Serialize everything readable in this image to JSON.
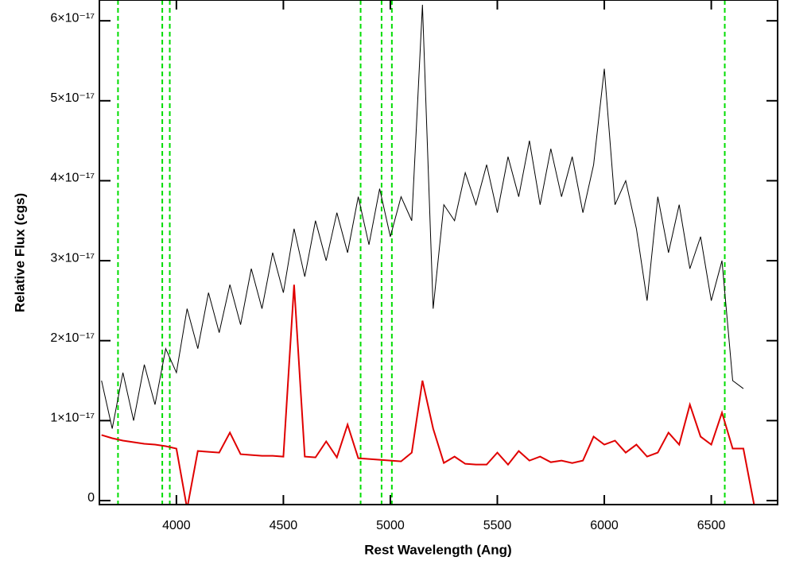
{
  "chart_data": {
    "type": "line",
    "xlabel": "Rest Wavelength (Ang)",
    "ylabel": "Relative Flux (cgs)",
    "x": [
      3650,
      3700,
      3750,
      3800,
      3850,
      3900,
      3950,
      4000,
      4050,
      4100,
      4150,
      4200,
      4250,
      4300,
      4350,
      4400,
      4450,
      4500,
      4550,
      4600,
      4650,
      4700,
      4750,
      4800,
      4850,
      4900,
      4950,
      5000,
      5050,
      5100,
      5150,
      5200,
      5250,
      5300,
      5350,
      5400,
      5450,
      5500,
      5550,
      5600,
      5650,
      5700,
      5750,
      5800,
      5850,
      5900,
      5950,
      6000,
      6050,
      6100,
      6150,
      6200,
      6250,
      6300,
      6350,
      6400,
      6450,
      6500,
      6550,
      6600,
      6650,
      6700,
      6750,
      6800
    ],
    "series": [
      {
        "color": "#000000",
        "values": [
          1.5e-17,
          9e-18,
          1.6e-17,
          1e-17,
          1.7e-17,
          1.2e-17,
          1.9e-17,
          1.6e-17,
          2.4e-17,
          1.9e-17,
          2.6e-17,
          2.1e-17,
          2.7e-17,
          2.2e-17,
          2.9e-17,
          2.4e-17,
          3.1e-17,
          2.6e-17,
          3.4e-17,
          2.8e-17,
          3.5e-17,
          3e-17,
          3.6e-17,
          3.1e-17,
          3.8e-17,
          3.2e-17,
          3.9e-17,
          3.3e-17,
          3.8e-17,
          3.5e-17,
          6.2e-17,
          2.4e-17,
          3.7e-17,
          3.5e-17,
          4.1e-17,
          3.7e-17,
          4.2e-17,
          3.6e-17,
          4.3e-17,
          3.8e-17,
          4.5e-17,
          3.7e-17,
          4.4e-17,
          3.8e-17,
          4.3e-17,
          3.6e-17,
          4.2e-17,
          5.4e-17,
          3.7e-17,
          4e-17,
          3.4e-17,
          2.5e-17,
          3.8e-17,
          3.1e-17,
          3.7e-17,
          2.9e-17,
          3.3e-17,
          2.5e-17,
          3e-17,
          1.5e-17,
          1.4e-17,
          null,
          null,
          null
        ]
      },
      {
        "color": "#e00000",
        "values": [
          8.2e-18,
          7.8e-18,
          7.5e-18,
          7.3e-18,
          7.1e-18,
          7e-18,
          6.8e-18,
          6.5e-18,
          -1e-18,
          6.2e-18,
          6.1e-18,
          6e-18,
          8.5e-18,
          5.8e-18,
          5.7e-18,
          5.6e-18,
          5.6e-18,
          5.5e-18,
          2.7e-17,
          5.5e-18,
          5.4e-18,
          7.4e-18,
          5.4e-18,
          9.5e-18,
          5.3e-18,
          5.2e-18,
          5.1e-18,
          5e-18,
          4.9e-18,
          6e-18,
          1.5e-17,
          9e-18,
          4.7e-18,
          5.5e-18,
          4.6e-18,
          4.5e-18,
          4.5e-18,
          6e-18,
          4.5e-18,
          6.2e-18,
          5e-18,
          5.5e-18,
          4.8e-18,
          5e-18,
          4.7e-18,
          5e-18,
          8e-18,
          7e-18,
          7.5e-18,
          6e-18,
          7e-18,
          5.5e-18,
          6e-18,
          8.5e-18,
          7e-18,
          1.2e-17,
          8e-18,
          7e-18,
          1.1e-17,
          6.5e-18,
          6.5e-18,
          -5e-19,
          -5e-19,
          -5e-19
        ]
      }
    ],
    "vlines": [
      3727,
      3934,
      3969,
      4861,
      4959,
      5007,
      6563
    ],
    "vline_color": "#00dd00",
    "xlim": [
      3640,
      6810
    ],
    "ylim": [
      -5e-19,
      6.26e-17
    ],
    "xticks": [
      4000,
      4500,
      5000,
      5500,
      6000,
      6500
    ],
    "yticks": [
      0,
      {
        "value": 1e-17,
        "label": "1×10⁻¹⁷"
      },
      {
        "value": 2e-17,
        "label": "2×10⁻¹⁷"
      },
      {
        "value": 3e-17,
        "label": "3×10⁻¹⁷"
      },
      {
        "value": 4e-17,
        "label": "4×10⁻¹⁷"
      },
      {
        "value": 5e-17,
        "label": "5×10⁻¹⁷"
      },
      {
        "value": 6e-17,
        "label": "6×10⁻¹⁷"
      }
    ]
  }
}
